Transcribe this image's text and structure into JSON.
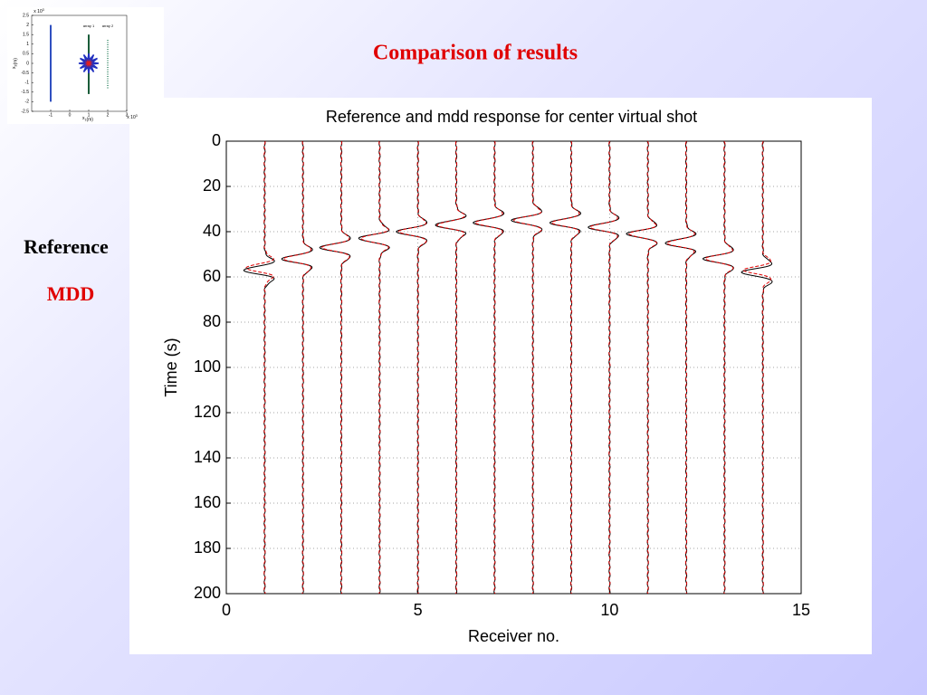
{
  "slide_title": "Comparison of results",
  "chart_data": [
    {
      "type": "wiggle",
      "title": "Reference and mdd response for center virtual shot",
      "x_label": "Receiver no.",
      "y_label": "Time (s)",
      "x": [
        1,
        2,
        3,
        4,
        5,
        6,
        7,
        8,
        9,
        10,
        11,
        12,
        13,
        14
      ],
      "series": [
        {
          "name": "Reference",
          "color": "#000000",
          "values": [
            57,
            52,
            47,
            43,
            40,
            37,
            36,
            35,
            36,
            38,
            41,
            45,
            52,
            58
          ]
        },
        {
          "name": "MDD",
          "color": "#e00000",
          "values": [
            56,
            52,
            47,
            43,
            40,
            37,
            36,
            35,
            36,
            38,
            41,
            45,
            52,
            57
          ]
        }
      ],
      "xlim": [
        0,
        15
      ],
      "xticks": [
        0,
        5,
        10,
        15
      ],
      "ylim": [
        0,
        200
      ],
      "yticks": [
        0,
        20,
        40,
        60,
        80,
        100,
        120,
        140,
        160,
        180,
        200
      ],
      "y_inverted": true,
      "grid": true
    },
    {
      "type": "layout",
      "x_label": "x",
      "x_label_sub": "1",
      "x_label_unit": "(m)",
      "y_label": "x",
      "y_label_sub": "2",
      "y_label_unit": "(m)",
      "x_exponent": {
        "base": "x 10",
        "power": "3"
      },
      "y_exponent": {
        "base": "x 10",
        "power": "3"
      },
      "xlim": [
        -2,
        3
      ],
      "xticks": [
        -1,
        0,
        1,
        2,
        3
      ],
      "ylim": [
        -2.5,
        2.5
      ],
      "yticks": [
        -2.5,
        -2,
        -1.5,
        -1,
        -0.5,
        0,
        0.5,
        1,
        1.5,
        2,
        2.5
      ],
      "arrays": [
        {
          "x": -1,
          "y": [
            -2,
            2
          ],
          "color": "#3050c0",
          "style": "solid"
        },
        {
          "name": "array 1",
          "x": 1,
          "y": [
            -1.6,
            1.5
          ],
          "color": "#1a5c3a",
          "style": "solid"
        },
        {
          "name": "array 2",
          "x": 2,
          "y": [
            -1.3,
            1.3
          ],
          "color": "#3a8a6a",
          "style": "dotted"
        }
      ],
      "source": {
        "x": 1,
        "y": 0
      }
    }
  ]
}
